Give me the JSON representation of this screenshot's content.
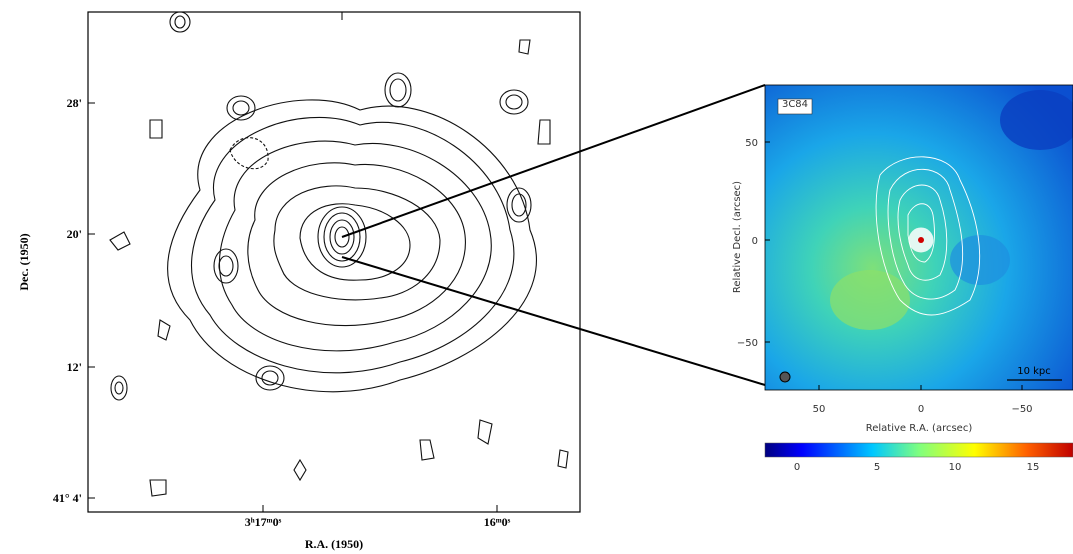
{
  "left_panel": {
    "y_label": "Dec. (1950)",
    "y_ticks": [
      "28'",
      "20'",
      "12'",
      "41° 4'"
    ],
    "x_ticks": [
      "3ʰ17ᵐ0ˢ",
      "16ᵐ0ˢ"
    ],
    "x_label": "R.A. (1950)"
  },
  "right_panel": {
    "label": "3C84",
    "y_label": "Relative Decl. (arcsec)",
    "y_ticks": [
      "50",
      "0",
      "−50"
    ],
    "x_ticks": [
      "50",
      "0",
      "−50"
    ],
    "x_label": "Relative R.A. (arcsec)",
    "scale_bar": "10 kpc",
    "colorbar_ticks": [
      "0",
      "5",
      "10",
      "15"
    ]
  }
}
